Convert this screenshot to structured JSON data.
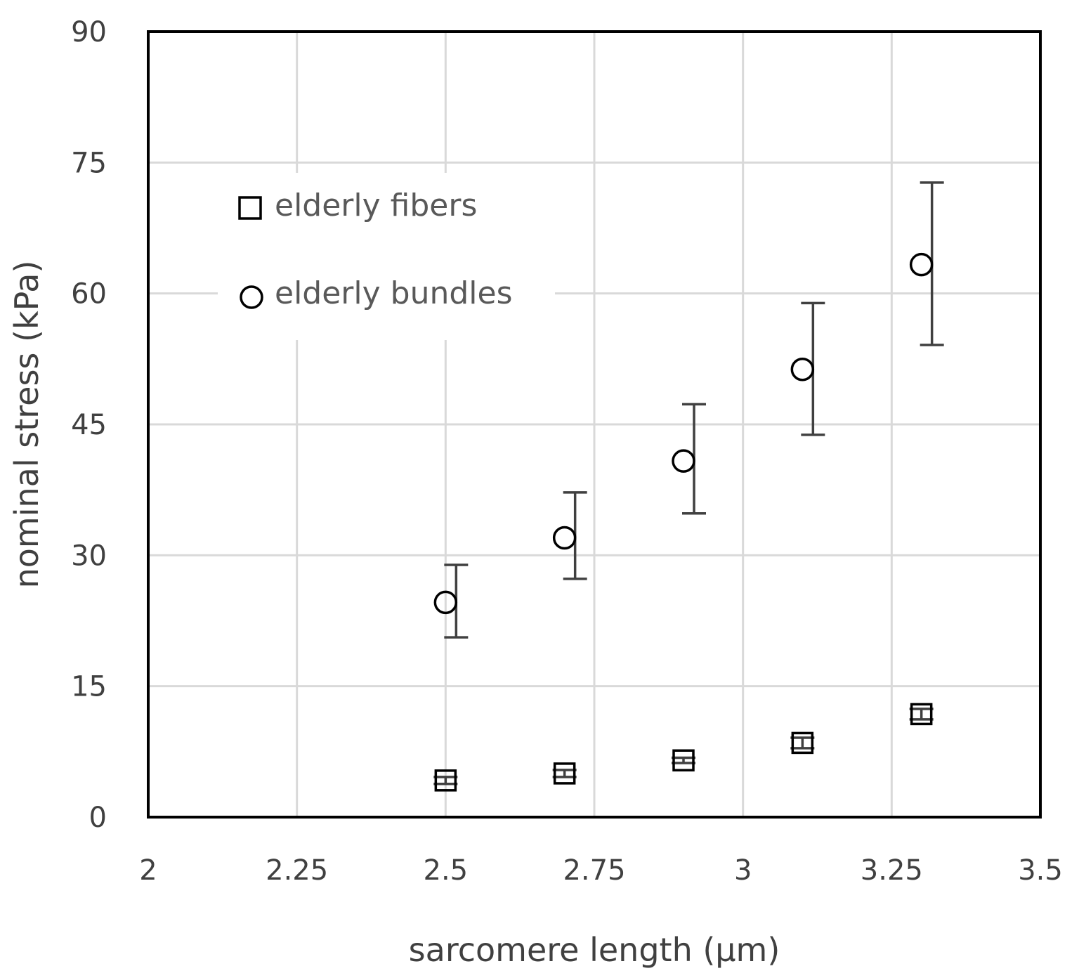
{
  "chart_data": {
    "type": "scatter",
    "xlabel": "sarcomere length (µm)",
    "ylabel": "nominal stress (kPa)",
    "xlim": [
      2,
      3.5
    ],
    "ylim": [
      0,
      90
    ],
    "x_ticks": [
      "2",
      "2.25",
      "2.5",
      "2.75",
      "3",
      "3.25",
      "3.5"
    ],
    "x_tick_values": [
      2,
      2.25,
      2.5,
      2.75,
      3,
      3.25,
      3.5
    ],
    "y_ticks": [
      "0",
      "15",
      "30",
      "45",
      "60",
      "75",
      "90"
    ],
    "y_tick_values": [
      0,
      15,
      30,
      45,
      60,
      75,
      90
    ],
    "grid": true,
    "legend_position": "top-left",
    "series": [
      {
        "name": "elderly fibers",
        "marker": "square",
        "color": "#000000",
        "x": [
          2.5,
          2.7,
          2.9,
          3.1,
          3.3
        ],
        "y": [
          4.2,
          5.0,
          6.5,
          8.5,
          11.8
        ],
        "err_low": [
          0.4,
          0.4,
          0.3,
          0.6,
          0.6
        ],
        "err_high": [
          0.4,
          0.4,
          0.3,
          0.6,
          0.6
        ]
      },
      {
        "name": "elderly bundles",
        "marker": "circle",
        "color": "#000000",
        "x": [
          2.5,
          2.7,
          2.9,
          3.1,
          3.3
        ],
        "y": [
          24.6,
          32.0,
          40.8,
          51.3,
          63.3
        ],
        "err_low": [
          4.0,
          4.7,
          6.0,
          7.5,
          9.2
        ],
        "err_high": [
          4.3,
          5.2,
          6.5,
          7.6,
          9.4
        ]
      }
    ]
  }
}
